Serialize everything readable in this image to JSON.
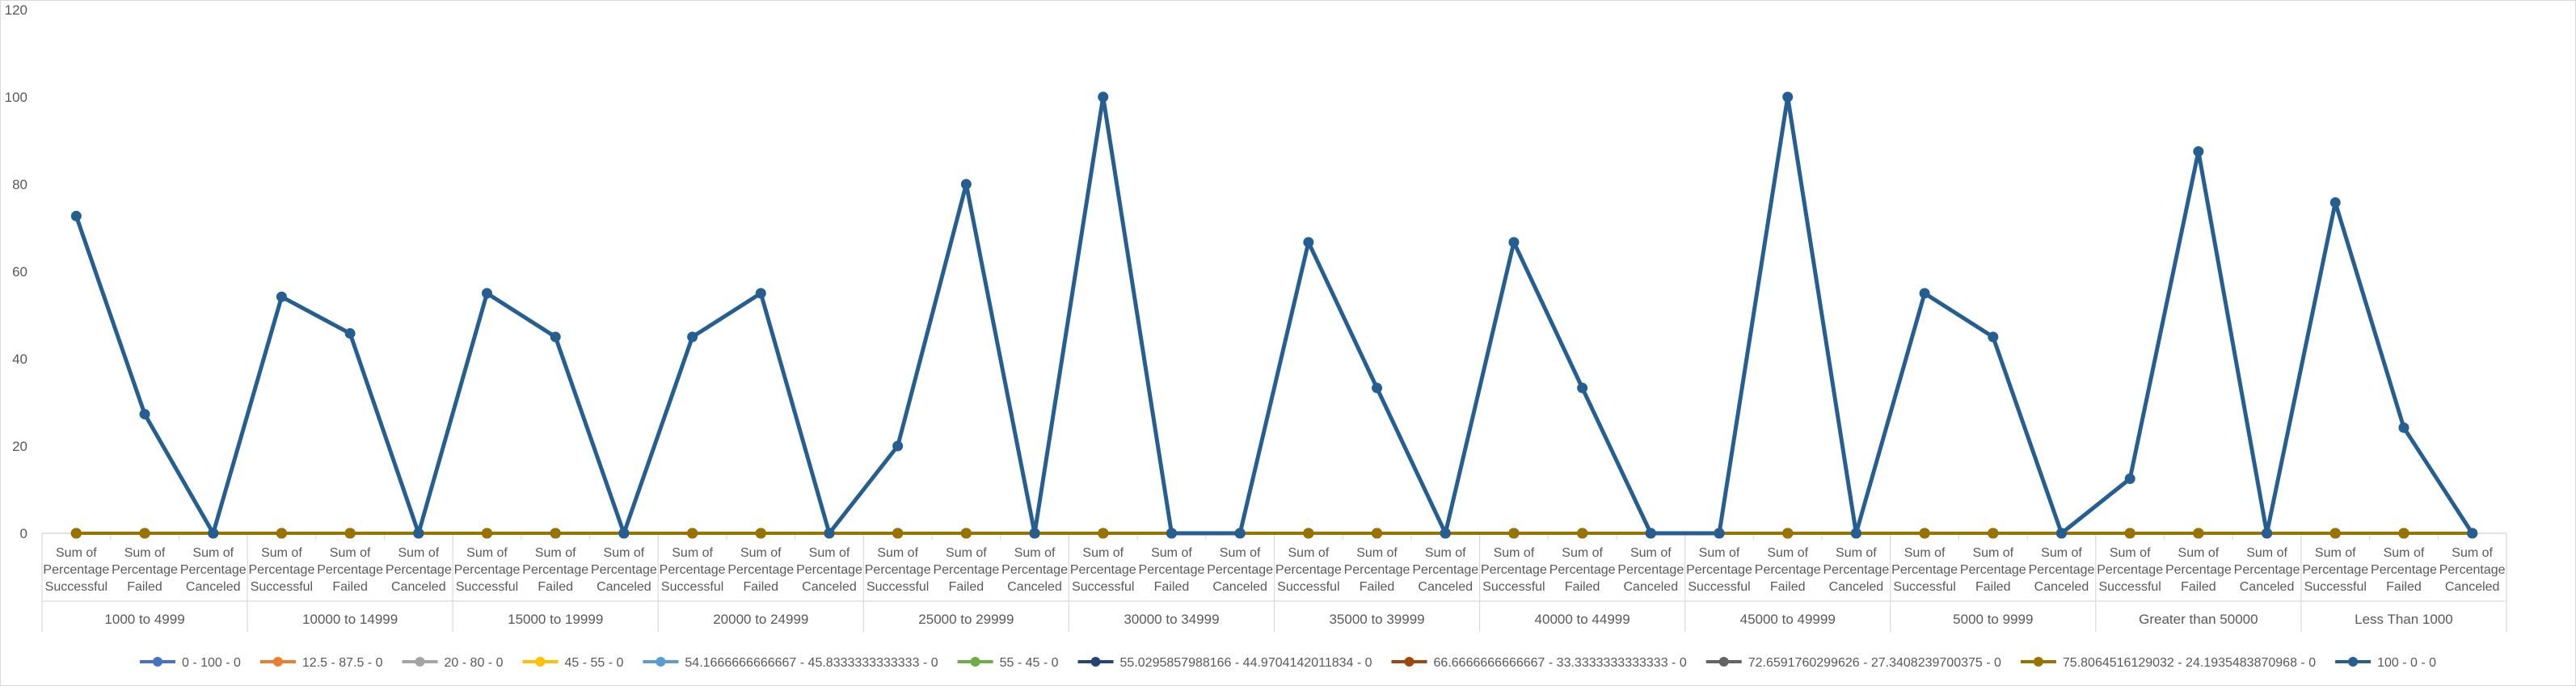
{
  "chart_data": {
    "type": "line",
    "title": "",
    "xlabel": "",
    "ylabel": "",
    "ylim": [
      0,
      120
    ],
    "yticks": [
      0,
      20,
      40,
      60,
      80,
      100,
      120
    ],
    "grid": false,
    "legend_position": "bottom",
    "category_lines": [
      "Sum of",
      "Percentage",
      "Successful",
      "Failed",
      "Canceled"
    ],
    "groups": [
      "1000 to 4999",
      "10000 to 14999",
      "15000 to 19999",
      "20000 to 24999",
      "25000 to 29999",
      "30000 to 34999",
      "35000 to 39999",
      "40000 to 44999",
      "45000 to 49999",
      "5000 to 9999",
      "Greater than 50000",
      "Less Than 1000"
    ],
    "subcategories": [
      "Sum of Percentage Successful",
      "Sum of Percentage Failed",
      "Sum of Percentage Canceled"
    ],
    "series": [
      {
        "name": "0 - 100 - 0",
        "color": "#4472c4",
        "values": [
          0,
          0,
          0,
          0,
          0,
          0,
          0,
          0,
          0,
          0,
          0,
          0,
          0,
          0,
          0,
          0,
          0,
          0,
          0,
          0,
          0,
          0,
          0,
          0,
          0,
          0,
          0,
          0,
          0,
          0,
          0,
          0,
          0,
          0,
          0,
          0
        ]
      },
      {
        "name": "12.5 - 87.5 - 0",
        "color": "#ed7d31",
        "values": [
          0,
          0,
          0,
          0,
          0,
          0,
          0,
          0,
          0,
          0,
          0,
          0,
          0,
          0,
          0,
          0,
          0,
          0,
          0,
          0,
          0,
          0,
          0,
          0,
          0,
          0,
          0,
          0,
          0,
          0,
          0,
          0,
          0,
          0,
          0,
          0
        ]
      },
      {
        "name": "20 - 80 - 0",
        "color": "#a5a5a5",
        "values": [
          0,
          0,
          0,
          0,
          0,
          0,
          0,
          0,
          0,
          0,
          0,
          0,
          0,
          0,
          0,
          0,
          0,
          0,
          0,
          0,
          0,
          0,
          0,
          0,
          0,
          0,
          0,
          0,
          0,
          0,
          0,
          0,
          0,
          0,
          0,
          0
        ]
      },
      {
        "name": "45 - 55 - 0",
        "color": "#ffc000",
        "values": [
          0,
          0,
          0,
          0,
          0,
          0,
          0,
          0,
          0,
          0,
          0,
          0,
          0,
          0,
          0,
          0,
          0,
          0,
          0,
          0,
          0,
          0,
          0,
          0,
          0,
          0,
          0,
          0,
          0,
          0,
          0,
          0,
          0,
          0,
          0,
          0
        ]
      },
      {
        "name": "54.1666666666667 - 45.8333333333333 - 0",
        "color": "#5b9bd5",
        "values": [
          0,
          0,
          0,
          0,
          0,
          0,
          0,
          0,
          0,
          0,
          0,
          0,
          0,
          0,
          0,
          0,
          0,
          0,
          0,
          0,
          0,
          0,
          0,
          0,
          0,
          0,
          0,
          0,
          0,
          0,
          0,
          0,
          0,
          0,
          0,
          0
        ]
      },
      {
        "name": "55 - 45 - 0",
        "color": "#70ad47",
        "values": [
          0,
          0,
          0,
          0,
          0,
          0,
          0,
          0,
          0,
          0,
          0,
          0,
          0,
          0,
          0,
          0,
          0,
          0,
          0,
          0,
          0,
          0,
          0,
          0,
          0,
          0,
          0,
          0,
          0,
          0,
          0,
          0,
          0,
          0,
          0,
          0
        ]
      },
      {
        "name": "55.0295857988166 - 44.9704142011834 - 0",
        "color": "#264478",
        "values": [
          0,
          0,
          0,
          0,
          0,
          0,
          0,
          0,
          0,
          0,
          0,
          0,
          0,
          0,
          0,
          0,
          0,
          0,
          0,
          0,
          0,
          0,
          0,
          0,
          0,
          0,
          0,
          0,
          0,
          0,
          0,
          0,
          0,
          0,
          0,
          0
        ]
      },
      {
        "name": "66.6666666666667 - 33.3333333333333 - 0",
        "color": "#9e480e",
        "values": [
          0,
          0,
          0,
          0,
          0,
          0,
          0,
          0,
          0,
          0,
          0,
          0,
          0,
          0,
          0,
          0,
          0,
          0,
          0,
          0,
          0,
          0,
          0,
          0,
          0,
          0,
          0,
          0,
          0,
          0,
          0,
          0,
          0,
          0,
          0,
          0
        ]
      },
      {
        "name": "72.6591760299626 - 27.3408239700375 - 0",
        "color": "#636363",
        "values": [
          0,
          0,
          0,
          0,
          0,
          0,
          0,
          0,
          0,
          0,
          0,
          0,
          0,
          0,
          0,
          0,
          0,
          0,
          0,
          0,
          0,
          0,
          0,
          0,
          0,
          0,
          0,
          0,
          0,
          0,
          0,
          0,
          0,
          0,
          0,
          0
        ]
      },
      {
        "name": "75.8064516129032 - 24.1935483870968 - 0",
        "color": "#997300",
        "values": [
          0,
          0,
          0,
          0,
          0,
          0,
          0,
          0,
          0,
          0,
          0,
          0,
          0,
          0,
          0,
          0,
          0,
          0,
          0,
          0,
          0,
          0,
          0,
          0,
          0,
          0,
          0,
          0,
          0,
          0,
          0,
          0,
          0,
          0,
          0,
          0
        ]
      },
      {
        "name": "100 - 0 - 0",
        "color": "#255e91",
        "values": [
          72.7,
          27.3,
          0,
          54.2,
          45.8,
          0,
          55,
          45,
          0,
          45,
          55,
          0,
          20,
          80,
          0,
          100,
          0,
          0,
          66.7,
          33.3,
          0,
          66.7,
          33.3,
          0,
          0,
          100,
          0,
          55,
          45,
          0,
          12.5,
          87.5,
          0,
          75.8,
          24.2,
          0
        ]
      }
    ]
  }
}
